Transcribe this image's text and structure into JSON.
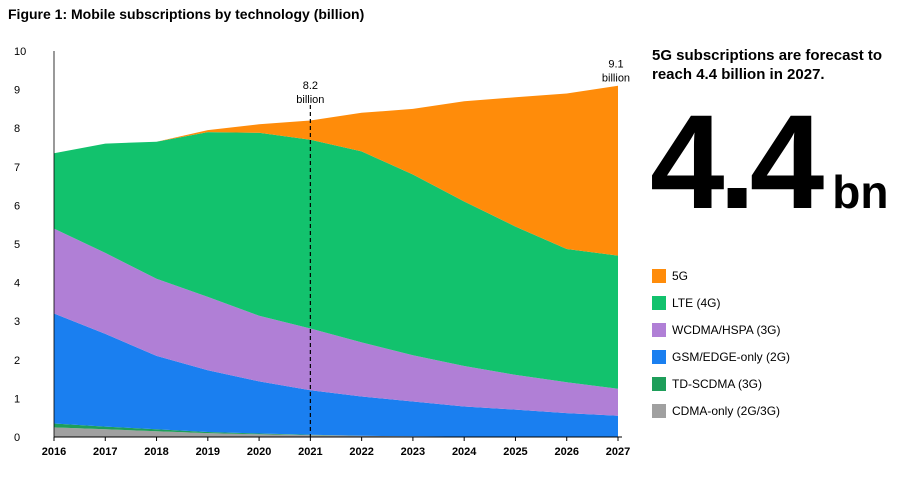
{
  "title": "Figure 1: Mobile subscriptions by technology (billion)",
  "callout": {
    "text": "5G subscriptions are forecast to reach 4.4 billion in 2027.",
    "big_value": "4.4",
    "big_unit": "bn"
  },
  "chart_data": {
    "type": "area",
    "stacked": true,
    "x": [
      2016,
      2017,
      2018,
      2019,
      2020,
      2021,
      2022,
      2023,
      2024,
      2025,
      2026,
      2027
    ],
    "ylim": [
      0,
      10
    ],
    "yticks": [
      0,
      1,
      2,
      3,
      4,
      5,
      6,
      7,
      8,
      9,
      10
    ],
    "grid": false,
    "legend_position": "right",
    "series": [
      {
        "name": "CDMA-only (2G/3G)",
        "color": "#a0a0a0",
        "values": [
          0.25,
          0.2,
          0.15,
          0.1,
          0.07,
          0.05,
          0.03,
          0.02,
          0.01,
          0.01,
          0.0,
          0.0
        ]
      },
      {
        "name": "TD-SCDMA (3G)",
        "color": "#1e9e5a",
        "values": [
          0.1,
          0.07,
          0.05,
          0.03,
          0.02,
          0.01,
          0.0,
          0.0,
          0.0,
          0.0,
          0.0,
          0.0
        ]
      },
      {
        "name": "GSM/EDGE-only (2G)",
        "color": "#1a7ff0",
        "values": [
          2.85,
          2.4,
          1.9,
          1.6,
          1.35,
          1.15,
          1.02,
          0.9,
          0.78,
          0.7,
          0.62,
          0.55
        ]
      },
      {
        "name": "WCDMA/HSPA (3G)",
        "color": "#b07fd6",
        "values": [
          2.2,
          2.1,
          2.0,
          1.9,
          1.7,
          1.6,
          1.4,
          1.2,
          1.05,
          0.9,
          0.8,
          0.7
        ]
      },
      {
        "name": "LTE (4G)",
        "color": "#12c26d",
        "values": [
          1.95,
          2.83,
          3.55,
          4.27,
          4.74,
          4.89,
          4.95,
          4.68,
          4.26,
          3.84,
          3.45,
          3.45
        ]
      },
      {
        "name": "5G",
        "color": "#ff8c0a",
        "values": [
          0.0,
          0.0,
          0.0,
          0.05,
          0.22,
          0.5,
          1.0,
          1.7,
          2.6,
          3.35,
          4.03,
          4.4
        ]
      }
    ],
    "legend_order": [
      "5G",
      "LTE (4G)",
      "WCDMA/HSPA (3G)",
      "GSM/EDGE-only (2G)",
      "TD-SCDMA (3G)",
      "CDMA-only (2G/3G)"
    ],
    "annotations": [
      {
        "x": 2021,
        "value": "8.2",
        "unit": "billion",
        "line": "dashed"
      },
      {
        "x": 2027,
        "value": "9.1",
        "unit": "billion"
      }
    ]
  }
}
